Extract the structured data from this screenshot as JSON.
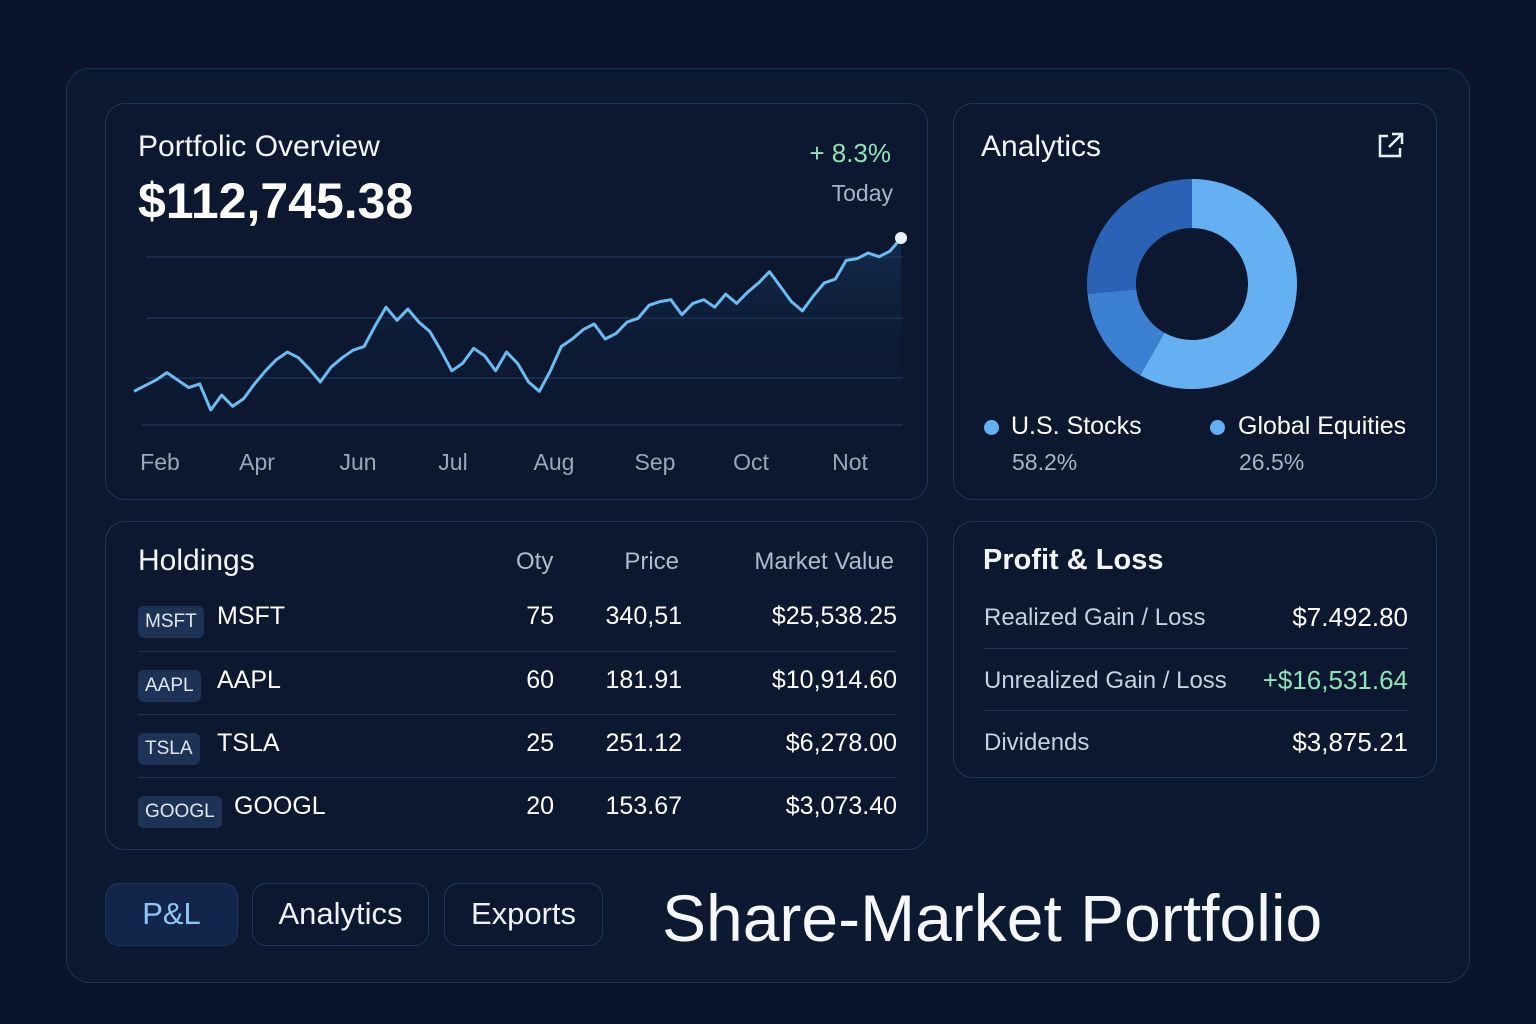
{
  "overview": {
    "title": "Portfolic Overview",
    "value": "$112,745.38",
    "change": "+ 8.3%",
    "period": "Today"
  },
  "chart_data": [
    {
      "type": "line",
      "title": "",
      "xlabel": "",
      "ylabel": "",
      "grid": true,
      "color": "#6bbcf2",
      "x_tick_labels": [
        "Feb",
        "Apr",
        "Jun",
        "Jul",
        "Aug",
        "Sep",
        "Oct",
        "Not"
      ],
      "ylim": [
        0,
        100
      ],
      "values": [
        18,
        21,
        24,
        28,
        24,
        20,
        22,
        8,
        16,
        10,
        14,
        22,
        29,
        35,
        39,
        36,
        30,
        23,
        31,
        36,
        40,
        42,
        53,
        63,
        56,
        62,
        55,
        50,
        40,
        29,
        33,
        41,
        37,
        29,
        39,
        33,
        23,
        18,
        29,
        42,
        46,
        51,
        54,
        46,
        49,
        55,
        57,
        64,
        66,
        67,
        59,
        65,
        67,
        63,
        70,
        65,
        71,
        76,
        82,
        74,
        66,
        61,
        69,
        76,
        78,
        88,
        89,
        92,
        90,
        93,
        100
      ]
    },
    {
      "type": "pie",
      "title": "Analytics",
      "donut": true,
      "slices": [
        {
          "label": "U.S. Stocks",
          "value": 58.2,
          "display": "58.2%",
          "color": "#64b0f2"
        },
        {
          "label": "",
          "value": 15.3,
          "color": "#3b80d1"
        },
        {
          "label": "Global Equities",
          "value": 26.5,
          "display": "26.5%",
          "color": "#2a63b5"
        }
      ],
      "legend": "bottom"
    }
  ],
  "analytics": {
    "title": "Analytics",
    "icon": "external-link-icon"
  },
  "holdings": {
    "title": "Holdings",
    "columns": [
      "Oty",
      "Price",
      "Market Value"
    ],
    "rows": [
      {
        "tag": "MSFT",
        "symbol": "MSFT",
        "qty": "75",
        "price": "340,51",
        "value": "$25,538.25"
      },
      {
        "tag": "AAPL",
        "symbol": "AAPL",
        "qty": "60",
        "price": "181.91",
        "value": "$10,914.60"
      },
      {
        "tag": "TSLA",
        "symbol": "TSLA",
        "qty": "25",
        "price": "251.12",
        "value": "$6,278.00"
      },
      {
        "tag": "GOOGL",
        "symbol": "GOOGL",
        "qty": "20",
        "price": "153.67",
        "value": "$3,073.40"
      }
    ]
  },
  "pl": {
    "title": "Profit & Loss",
    "rows": [
      {
        "label": "Realized Gain / Loss",
        "value": "$7.492.80"
      },
      {
        "label": "Unrealized Gain / Loss",
        "value": "+$16,531.64"
      },
      {
        "label": "Dividends",
        "value": "$3,875.21"
      }
    ]
  },
  "tabs": [
    "P&L",
    "Analytics",
    "Exports"
  ],
  "page_title": "Share-Market Portfolio",
  "colors": {
    "accent": "#6bbcf2",
    "positive": "#8fe3b8",
    "background": "#0a1529"
  }
}
